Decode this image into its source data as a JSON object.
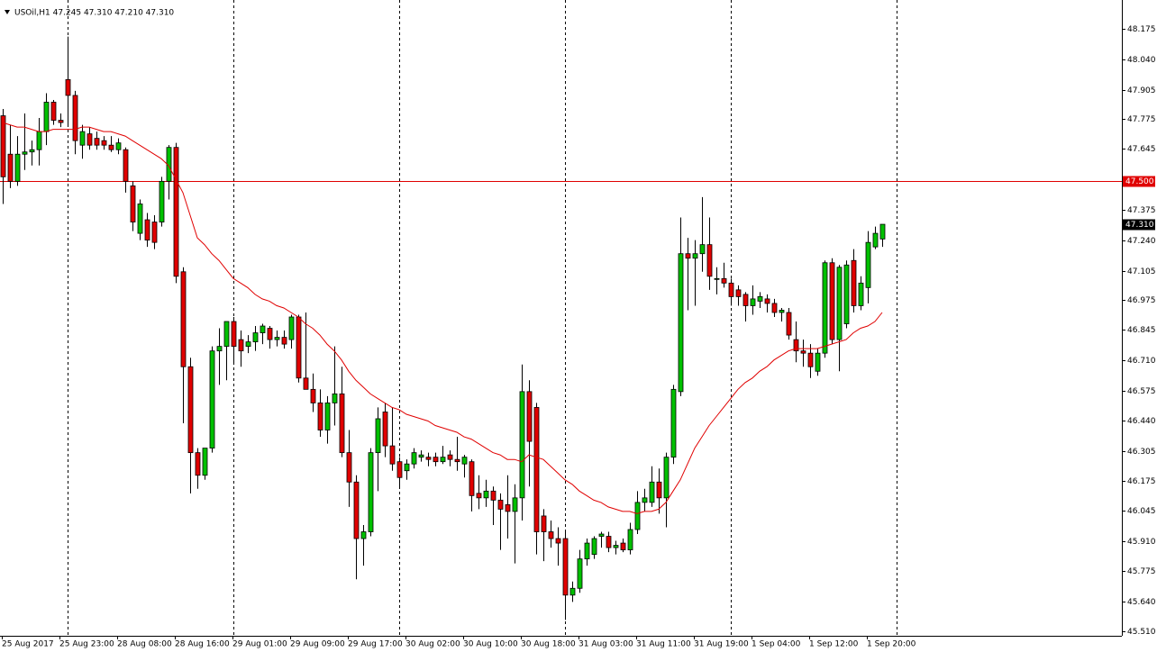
{
  "chart_data": {
    "type": "candlestick",
    "title": "USOil,H1  47.245 47.310 47.210 47.310",
    "categories": [
      "25 Aug 2017",
      null,
      null,
      null,
      null,
      null,
      null,
      null,
      "25 Aug 23:00",
      null,
      null,
      null,
      null,
      null,
      null,
      null,
      "28 Aug 08:00",
      null,
      null,
      null,
      null,
      null,
      null,
      null,
      "28 Aug 16:00",
      null,
      null,
      null,
      null,
      null,
      null,
      null,
      "29 Aug 01:00",
      null,
      null,
      null,
      null,
      null,
      null,
      null,
      "29 Aug 09:00",
      null,
      null,
      null,
      null,
      null,
      null,
      null,
      "29 Aug 17:00",
      null,
      null,
      null,
      null,
      null,
      null,
      null,
      "30 Aug 02:00",
      null,
      null,
      null,
      null,
      null,
      null,
      null,
      "30 Aug 10:00",
      null,
      null,
      null,
      null,
      null,
      null,
      null,
      "30 Aug 18:00",
      null,
      null,
      null,
      null,
      null,
      null,
      null,
      "31 Aug 03:00",
      null,
      null,
      null,
      null,
      null,
      null,
      null,
      "31 Aug 11:00",
      null,
      null,
      null,
      null,
      null,
      null,
      null,
      "31 Aug 19:00",
      null,
      null,
      null,
      null,
      null,
      null,
      null,
      "1 Sep 04:00",
      null,
      null,
      null,
      null,
      null,
      null,
      null,
      "1 Sep 12:00",
      null,
      null,
      null,
      null,
      null,
      null,
      null,
      "1 Sep 20:00",
      null,
      null
    ],
    "open": [
      47.79,
      47.62,
      47.5,
      47.62,
      47.63,
      47.64,
      47.72,
      47.85,
      47.77,
      47.95,
      47.88,
      47.66,
      47.71,
      47.69,
      47.68,
      47.66,
      47.64,
      47.64,
      47.48,
      47.27,
      47.33,
      47.32,
      47.32,
      47.5,
      47.65,
      47.1,
      46.68,
      46.3,
      46.2,
      46.32,
      46.75,
      46.77,
      46.88,
      46.8,
      46.77,
      46.79,
      46.83,
      46.85,
      46.8,
      46.81,
      46.8,
      46.9,
      46.63,
      46.58,
      46.52,
      46.4,
      46.52,
      46.56,
      46.3,
      46.17,
      45.92,
      45.95,
      46.3,
      46.48,
      46.33,
      46.26,
      46.22,
      46.25,
      46.28,
      46.28,
      46.28,
      46.26,
      46.29,
      46.27,
      46.25,
      46.26,
      46.12,
      46.1,
      46.13,
      46.09,
      46.07,
      46.04,
      46.1,
      46.57,
      46.5,
      46.02,
      45.95,
      45.92,
      45.92,
      45.67,
      45.7,
      45.83,
      45.85,
      45.93,
      45.93,
      45.88,
      45.9,
      45.87,
      45.96,
      46.08,
      46.08,
      46.17,
      46.1,
      46.28,
      46.57,
      47.18,
      47.16,
      47.18,
      47.22,
      47.07,
      47.07,
      47.05,
      47.02,
      47.0,
      46.95,
      46.97,
      46.98,
      46.96,
      46.92,
      46.92,
      46.8,
      46.75,
      46.74,
      46.66,
      46.74,
      47.14,
      46.8,
      46.87,
      47.15,
      46.95,
      47.03,
      47.21,
      47.245
    ],
    "high": [
      47.82,
      47.75,
      47.7,
      47.8,
      47.68,
      47.78,
      47.89,
      47.86,
      47.8,
      48.14,
      47.9,
      47.75,
      47.74,
      47.72,
      47.7,
      47.7,
      47.69,
      47.65,
      47.5,
      47.42,
      47.36,
      47.35,
      47.52,
      47.66,
      47.67,
      47.12,
      46.72,
      46.32,
      46.32,
      46.77,
      46.85,
      46.88,
      46.9,
      46.84,
      46.82,
      46.86,
      46.87,
      46.86,
      46.84,
      46.84,
      46.91,
      46.91,
      46.92,
      46.65,
      46.58,
      46.55,
      46.77,
      46.68,
      46.4,
      46.2,
      45.98,
      46.32,
      46.5,
      46.52,
      46.5,
      46.28,
      46.27,
      46.32,
      46.31,
      46.3,
      46.3,
      46.33,
      46.31,
      46.37,
      46.29,
      46.27,
      46.2,
      46.18,
      46.15,
      46.12,
      46.2,
      46.16,
      46.69,
      46.62,
      46.52,
      46.05,
      46.0,
      45.97,
      45.95,
      45.73,
      45.87,
      45.92,
      45.93,
      45.95,
      45.95,
      45.91,
      45.92,
      45.99,
      46.13,
      46.14,
      46.24,
      46.23,
      46.3,
      46.6,
      47.34,
      47.25,
      47.24,
      47.43,
      47.34,
      47.12,
      47.14,
      47.07,
      47.04,
      47.01,
      47.04,
      47.01,
      47.0,
      46.98,
      46.94,
      46.94,
      46.88,
      46.8,
      46.78,
      46.76,
      47.15,
      47.16,
      47.13,
      47.15,
      47.2,
      47.08,
      47.28,
      47.3,
      47.31
    ],
    "low": [
      47.4,
      47.47,
      47.48,
      47.55,
      47.57,
      47.57,
      47.66,
      47.75,
      47.74,
      47.75,
      47.62,
      47.6,
      47.64,
      47.64,
      47.64,
      47.63,
      47.62,
      47.45,
      47.28,
      47.24,
      47.21,
      47.2,
      47.3,
      47.42,
      47.05,
      46.43,
      46.12,
      46.14,
      46.18,
      46.3,
      46.6,
      46.62,
      46.7,
      46.68,
      46.74,
      46.75,
      46.78,
      46.76,
      46.77,
      46.76,
      46.76,
      46.61,
      46.58,
      46.48,
      46.37,
      46.34,
      46.42,
      46.28,
      46.06,
      45.74,
      45.8,
      45.93,
      46.13,
      46.28,
      46.22,
      46.15,
      46.18,
      46.23,
      46.26,
      46.24,
      46.24,
      46.25,
      46.24,
      46.22,
      46.19,
      46.04,
      46.05,
      46.06,
      45.98,
      45.87,
      45.92,
      45.81,
      46.0,
      46.15,
      45.85,
      45.82,
      45.88,
      45.8,
      45.56,
      45.64,
      45.68,
      45.8,
      45.83,
      45.88,
      45.86,
      45.85,
      45.86,
      45.85,
      45.94,
      46.04,
      46.06,
      46.03,
      45.97,
      46.25,
      46.55,
      46.93,
      46.95,
      47.1,
      47.02,
      47.0,
      47.03,
      46.95,
      46.95,
      46.88,
      46.91,
      46.94,
      46.92,
      46.9,
      46.88,
      46.8,
      46.7,
      46.68,
      46.63,
      46.64,
      46.72,
      46.78,
      46.66,
      46.85,
      46.92,
      46.93,
      46.96,
      47.2,
      47.21
    ],
    "close": [
      47.52,
      47.5,
      47.62,
      47.63,
      47.64,
      47.72,
      47.85,
      47.77,
      47.76,
      47.88,
      47.68,
      47.72,
      47.66,
      47.66,
      47.66,
      47.64,
      47.67,
      47.5,
      47.32,
      47.4,
      47.24,
      47.23,
      47.5,
      47.65,
      47.08,
      46.68,
      46.3,
      46.2,
      46.32,
      46.75,
      46.77,
      46.88,
      46.77,
      46.75,
      46.79,
      46.83,
      46.86,
      46.8,
      46.81,
      46.78,
      46.9,
      46.63,
      46.58,
      46.52,
      46.4,
      46.52,
      46.56,
      46.3,
      46.17,
      45.92,
      45.95,
      46.3,
      46.45,
      46.33,
      46.25,
      46.19,
      46.25,
      46.3,
      46.29,
      46.27,
      46.26,
      46.28,
      46.27,
      46.26,
      46.28,
      46.11,
      46.1,
      46.13,
      46.09,
      46.05,
      46.04,
      46.1,
      46.57,
      46.35,
      45.95,
      45.95,
      45.92,
      45.9,
      45.67,
      45.7,
      45.83,
      45.9,
      45.92,
      45.94,
      45.88,
      45.89,
      45.87,
      45.96,
      46.08,
      46.1,
      46.17,
      46.1,
      46.28,
      46.58,
      47.18,
      47.16,
      47.18,
      47.22,
      47.08,
      47.07,
      47.05,
      46.99,
      46.99,
      46.95,
      46.98,
      46.99,
      46.96,
      46.92,
      46.93,
      46.82,
      46.75,
      46.74,
      46.68,
      46.74,
      47.14,
      46.8,
      47.12,
      47.13,
      46.95,
      47.05,
      47.23,
      47.27,
      47.31
    ],
    "up_color": "#00c000",
    "down_color": "#e00000",
    "moving_average": {
      "color": "#e00000",
      "values": [
        47.76,
        47.75,
        47.74,
        47.74,
        47.73,
        47.72,
        47.72,
        47.73,
        47.73,
        47.73,
        47.73,
        47.74,
        47.74,
        47.73,
        47.72,
        47.72,
        47.71,
        47.7,
        47.68,
        47.66,
        47.64,
        47.62,
        47.6,
        47.57,
        47.51,
        47.45,
        47.35,
        47.25,
        47.22,
        47.18,
        47.15,
        47.11,
        47.07,
        47.05,
        47.03,
        47.0,
        46.98,
        46.97,
        46.95,
        46.94,
        46.92,
        46.9,
        46.87,
        46.85,
        46.82,
        46.78,
        46.75,
        46.71,
        46.66,
        46.62,
        46.59,
        46.56,
        46.54,
        46.52,
        46.5,
        46.49,
        46.47,
        46.46,
        46.45,
        46.44,
        46.42,
        46.41,
        46.4,
        46.39,
        46.37,
        46.36,
        46.34,
        46.32,
        46.3,
        46.29,
        46.27,
        46.27,
        46.26,
        46.29,
        46.28,
        46.27,
        46.24,
        46.21,
        46.18,
        46.16,
        46.13,
        46.11,
        46.09,
        46.08,
        46.06,
        46.05,
        46.04,
        46.04,
        46.03,
        46.04,
        46.04,
        46.05,
        46.08,
        46.13,
        46.18,
        46.25,
        46.32,
        46.37,
        46.42,
        46.46,
        46.5,
        46.54,
        46.58,
        46.61,
        46.63,
        46.66,
        46.68,
        46.71,
        46.73,
        46.75,
        46.76,
        46.76,
        46.76,
        46.76,
        46.77,
        46.78,
        46.79,
        46.8,
        46.83,
        46.85,
        46.86,
        46.88,
        46.92
      ]
    },
    "ylim": [
      45.49,
      48.302
    ],
    "yticks": [
      48.175,
      {
        "value": 48.04,
        "label": "48.040"
      },
      47.905,
      47.775,
      47.645,
      47.375,
      {
        "value": 47.24,
        "label": "47.240"
      },
      47.105,
      46.975,
      46.845,
      {
        "value": 46.71,
        "label": "46.710"
      },
      46.575,
      {
        "value": 46.44,
        "label": "46.440"
      },
      46.305,
      46.175,
      46.045,
      {
        "value": 45.91,
        "label": "45.910"
      },
      45.775,
      {
        "value": 45.64,
        "label": "45.640"
      },
      {
        "value": 45.51,
        "label": "45.510"
      }
    ],
    "grid": false,
    "hline": {
      "value": 47.5,
      "label": "47.500",
      "color": "#e00000"
    },
    "last_price": {
      "value": 47.31,
      "label": "47.310"
    }
  }
}
